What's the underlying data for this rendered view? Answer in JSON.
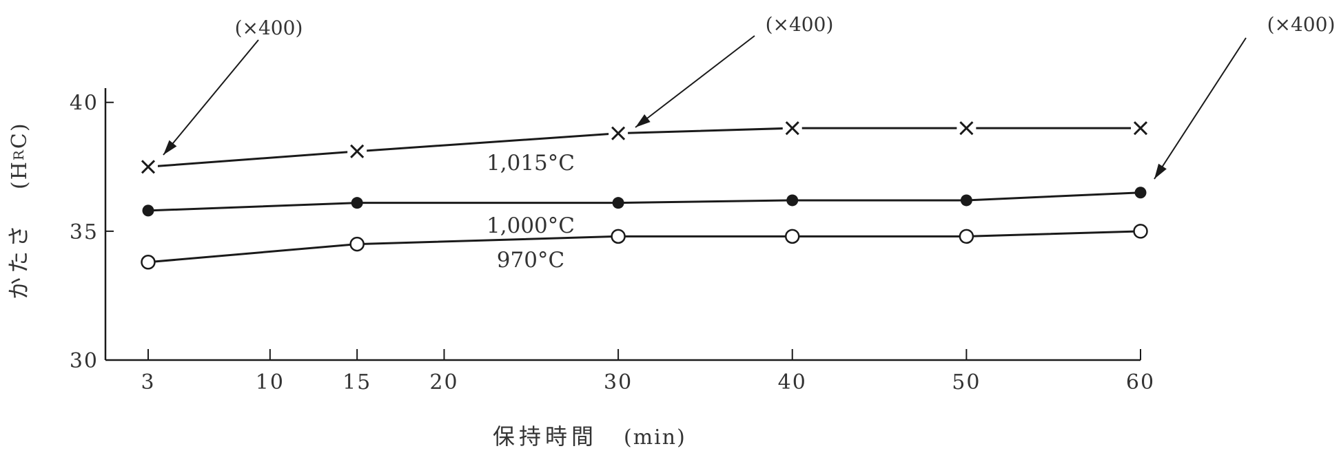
{
  "chart_data": {
    "type": "line",
    "title": "",
    "xlabel": "保持時間",
    "xunit": "(min)",
    "ylabel": "かたさ",
    "yunit": "(H",
    "yunit_sub": "R",
    "yunit_end": "C)",
    "xlim": [
      0,
      63
    ],
    "ylim": [
      30,
      40.5
    ],
    "xticks": [
      3,
      10,
      15,
      20,
      30,
      40,
      50,
      60
    ],
    "xtick_labels": [
      "3",
      "10",
      "15",
      "20",
      "30",
      "40",
      "50",
      "60"
    ],
    "yticks": [
      30,
      35,
      40
    ],
    "ytick_labels": [
      "30",
      "35",
      "40"
    ],
    "grid": false,
    "series": [
      {
        "name": "1,015°C",
        "marker": "x",
        "color": "#1a1a1a",
        "x": [
          3,
          15,
          30,
          40,
          50,
          60
        ],
        "y": [
          37.5,
          38.1,
          38.8,
          39.0,
          39.0,
          39.0
        ]
      },
      {
        "name": "1,000°C",
        "marker": "filled-circle",
        "color": "#1a1a1a",
        "x": [
          3,
          15,
          30,
          40,
          50,
          60
        ],
        "y": [
          35.8,
          36.1,
          36.1,
          36.2,
          36.2,
          36.5
        ]
      },
      {
        "name": "970°C",
        "marker": "open-circle",
        "color": "#1a1a1a",
        "x": [
          3,
          15,
          30,
          40,
          50,
          60
        ],
        "y": [
          33.8,
          34.5,
          34.8,
          34.8,
          34.8,
          35.0
        ]
      }
    ],
    "annotations": [
      {
        "text": "(×400)",
        "x": 3,
        "y": 37.5
      },
      {
        "text": "(×400)",
        "x": 30,
        "y": 38.8
      },
      {
        "text": "(×400)",
        "x": 60,
        "y": 36.5
      }
    ]
  }
}
